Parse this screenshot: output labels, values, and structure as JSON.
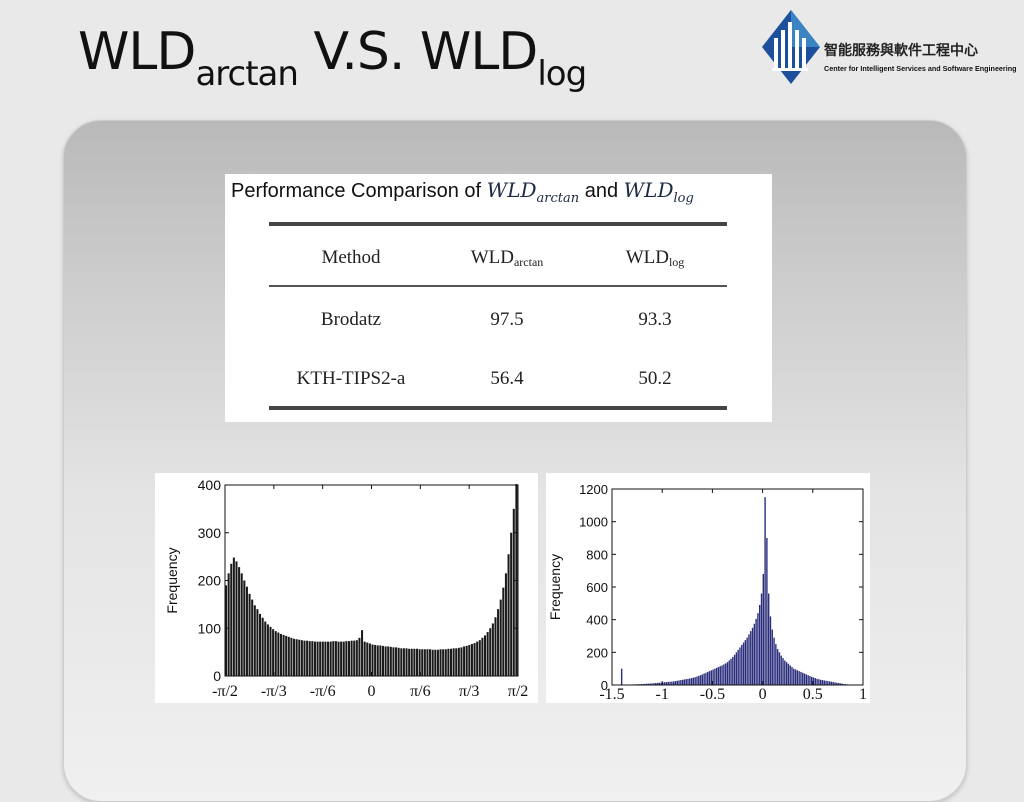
{
  "slide": {
    "title_main": "WLD",
    "title_sub1": "arctan",
    "title_mid": " V.S. WLD",
    "title_sub2": "log"
  },
  "logo": {
    "chinese": "智能服務與軟件工程中心",
    "english": "Center for Intelligent Services and Software Engineering",
    "colors": [
      "#1c4f9c",
      "#3b84c4",
      "#ffffff"
    ]
  },
  "comparison": {
    "title_prefix": "Performance Comparison of ",
    "title_math1": "WLD",
    "title_math1_sub": "arctan",
    "title_and": " and ",
    "title_math2": "WLD",
    "title_math2_sub": "log",
    "headers": {
      "method": "Method",
      "col1": "WLD",
      "col1_sub": "arctan",
      "col2": "WLD",
      "col2_sub": "log"
    },
    "rows": [
      {
        "method": "Brodatz",
        "arctan": "97.5",
        "log": "93.3"
      },
      {
        "method": "KTH-TIPS2-a",
        "arctan": "56.4",
        "log": "50.2"
      }
    ]
  },
  "chart_data": [
    {
      "type": "bar",
      "ylabel": "Frequency",
      "ylim": [
        0,
        400
      ],
      "yticks": [
        0,
        100,
        200,
        300,
        400
      ],
      "xlim": [
        -1.5708,
        1.5708
      ],
      "xticks": [
        {
          "value": -1.5708,
          "label": "-π/2"
        },
        {
          "value": -1.0472,
          "label": "-π/3"
        },
        {
          "value": -0.5236,
          "label": "-π/6"
        },
        {
          "value": 0,
          "label": "0"
        },
        {
          "value": 0.5236,
          "label": "π/6"
        },
        {
          "value": 1.0472,
          "label": "π/3"
        },
        {
          "value": 1.5708,
          "label": "π/2"
        }
      ],
      "bar_color": "#1a1a1a",
      "values": [
        190,
        215,
        235,
        248,
        240,
        228,
        215,
        200,
        187,
        172,
        160,
        148,
        140,
        130,
        122,
        114,
        108,
        103,
        98,
        94,
        91,
        88,
        86,
        84,
        82,
        80,
        78,
        77,
        76,
        75,
        74,
        74,
        73,
        73,
        72,
        72,
        72,
        72,
        72,
        72,
        72,
        73,
        73,
        72,
        72,
        72,
        73,
        73,
        74,
        74,
        75,
        80,
        96,
        72,
        70,
        68,
        66,
        65,
        64,
        64,
        63,
        62,
        62,
        61,
        60,
        60,
        59,
        58,
        58,
        58,
        57,
        57,
        57,
        57,
        56,
        56,
        56,
        56,
        56,
        55,
        55,
        55,
        56,
        56,
        56,
        57,
        57,
        58,
        58,
        59,
        60,
        62,
        63,
        65,
        67,
        69,
        72,
        75,
        80,
        85,
        92,
        100,
        110,
        123,
        140,
        160,
        185,
        215,
        255,
        300,
        350,
        402
      ]
    },
    {
      "type": "bar",
      "ylabel": "Frequency",
      "ylim": [
        0,
        1200
      ],
      "yticks": [
        0,
        200,
        400,
        600,
        800,
        1000,
        1200
      ],
      "xlim": [
        -1.5,
        1.0
      ],
      "xticks": [
        {
          "value": -1.5,
          "label": "-1.5"
        },
        {
          "value": -1,
          "label": "-1"
        },
        {
          "value": -0.5,
          "label": "-0.5"
        },
        {
          "value": 0,
          "label": "0"
        },
        {
          "value": 0.5,
          "label": "0.5"
        },
        {
          "value": 1,
          "label": "1"
        }
      ],
      "bar_color": "#2a2d7c",
      "values": [
        0,
        0,
        0,
        0,
        0,
        100,
        0,
        0,
        0,
        2,
        3,
        3,
        4,
        4,
        5,
        5,
        6,
        6,
        7,
        8,
        8,
        9,
        10,
        11,
        12,
        13,
        14,
        15,
        16,
        17,
        18,
        19,
        20,
        21,
        22,
        24,
        26,
        28,
        30,
        32,
        34,
        36,
        38,
        40,
        42,
        45,
        48,
        52,
        56,
        60,
        65,
        70,
        75,
        80,
        85,
        90,
        95,
        100,
        105,
        110,
        115,
        120,
        126,
        132,
        140,
        150,
        160,
        172,
        185,
        200,
        215,
        230,
        245,
        260,
        275,
        290,
        310,
        330,
        350,
        375,
        405,
        440,
        490,
        560,
        680,
        1150,
        900,
        560,
        420,
        340,
        290,
        250,
        220,
        200,
        180,
        165,
        150,
        140,
        130,
        120,
        110,
        100,
        95,
        90,
        85,
        80,
        75,
        70,
        65,
        60,
        55,
        50,
        46,
        42,
        38,
        35,
        32,
        30,
        28,
        26,
        24,
        22,
        20,
        18,
        16,
        14,
        12,
        10,
        8,
        6,
        5,
        4,
        3,
        2,
        2,
        1,
        1,
        0,
        0,
        0
      ]
    }
  ]
}
